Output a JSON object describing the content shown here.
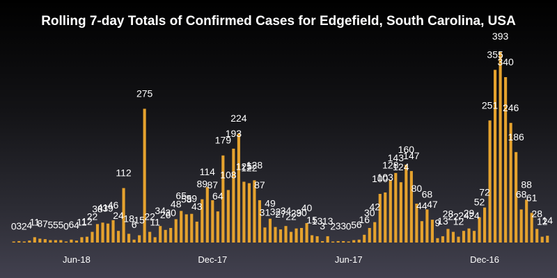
{
  "chart_data": {
    "type": "bar",
    "title": "Rolling 7-day Totals of Confirmed Cases for Edgefield, South Carolina, USA",
    "xlabel": "",
    "ylabel": "",
    "ylim": [
      0,
      400
    ],
    "grid": false,
    "bar_color": "#e5a22e",
    "background": [
      "#000000",
      "#42414f"
    ],
    "x_ticks": [
      {
        "label": "Jun-18",
        "index": 12
      },
      {
        "label": "Dec-17",
        "index": 38
      },
      {
        "label": "Jun-17",
        "index": 64
      },
      {
        "label": "Dec-16",
        "index": 90
      }
    ],
    "values": [
      0,
      3,
      2,
      4,
      11,
      8,
      7,
      5,
      5,
      5,
      0,
      6,
      4,
      11,
      12,
      22,
      38,
      41,
      39,
      46,
      24,
      112,
      18,
      6,
      15,
      275,
      22,
      11,
      34,
      26,
      30,
      48,
      65,
      58,
      59,
      43,
      89,
      114,
      87,
      64,
      179,
      108,
      193,
      224,
      125,
      122,
      128,
      87,
      31,
      49,
      32,
      27,
      34,
      22,
      29,
      30,
      40,
      15,
      13,
      3,
      13,
      2,
      3,
      3,
      0,
      5,
      6,
      16,
      30,
      42,
      100,
      103,
      128,
      143,
      124,
      160,
      147,
      80,
      44,
      68,
      47,
      9,
      13,
      28,
      22,
      12,
      24,
      29,
      24,
      52,
      72,
      251,
      355,
      393,
      340,
      246,
      186,
      68,
      88,
      61,
      28,
      12,
      14
    ],
    "labels": [
      "0",
      "3",
      "2",
      "4",
      "11",
      "8",
      "7",
      "5",
      "5",
      "5",
      "0",
      "6",
      "4",
      "11",
      "12",
      "22",
      "38",
      "41",
      "39",
      "46",
      "24",
      "112",
      "18",
      "6",
      "15",
      "275",
      "22",
      "11",
      "34",
      "26",
      "30",
      "48",
      "65",
      "58",
      "59",
      "43",
      "89",
      "114",
      "87",
      "64",
      "179",
      "108",
      "193",
      "224",
      "125",
      "122",
      "128",
      "87",
      "31",
      "49",
      "32",
      "27",
      "34",
      "22",
      "29",
      "30",
      "40",
      "15",
      "13",
      "3",
      "13",
      "2",
      "3",
      "3",
      "0",
      "5",
      "6",
      "16",
      "30",
      "42",
      "100",
      "103",
      "128",
      "143",
      "124",
      "160",
      "147",
      "80",
      "44",
      "68",
      "47",
      "9",
      "13",
      "28",
      "22",
      "12",
      "24",
      "29",
      "24",
      "52",
      "72",
      "251",
      "355",
      "393",
      "340",
      "246",
      "186",
      "68",
      "88",
      "61",
      "28",
      "12",
      "14"
    ]
  }
}
